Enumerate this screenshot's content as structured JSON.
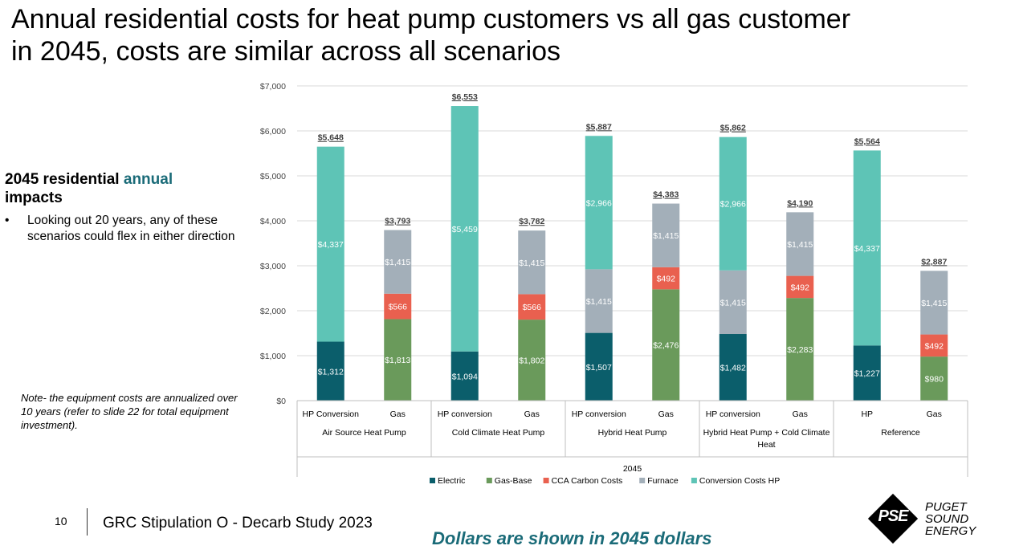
{
  "slide": {
    "title_line1": "Annual residential costs for heat pump customers vs all gas customer",
    "title_line2": "in 2045, costs are similar across all scenarios",
    "side_heading_prefix": "2045 residential ",
    "side_heading_accent": "annual",
    "side_heading_suffix": "impacts",
    "bullet_marker": "•",
    "bullet_text": "Looking out 20 years, any of these scenarios could flex in either direction",
    "note": "Note- the equipment costs are annualized over 10 years (refer to slide 22 for total equipment investment).",
    "page_number": "10",
    "footer_text": "GRC Stipulation O - Decarb Study 2023",
    "footer_dollars": "Dollars are shown in 2045 dollars",
    "logo_mark": "PSE",
    "logo_line1": "PUGET",
    "logo_line2": "SOUND",
    "logo_line3": "ENERGY",
    "accent_color": "#1a6b78"
  },
  "chart_data": {
    "type": "bar",
    "stacked": true,
    "title": "",
    "xlabel": "2045",
    "ylabel": "",
    "ylim": [
      0,
      7000
    ],
    "yticks": [
      0,
      1000,
      2000,
      3000,
      4000,
      5000,
      6000,
      7000
    ],
    "ytick_labels": [
      "$0",
      "$1,000",
      "$2,000",
      "$3,000",
      "$4,000",
      "$5,000",
      "$6,000",
      "$7,000"
    ],
    "grid": true,
    "legend_position": "bottom",
    "groups": [
      {
        "name": "Air Source Heat Pump",
        "categories": [
          "HP Conversion",
          "Gas"
        ]
      },
      {
        "name": "Cold Climate Heat Pump",
        "categories": [
          "HP conversion",
          "Gas"
        ]
      },
      {
        "name": "Hybrid Heat Pump",
        "categories": [
          "HP conversion",
          "Gas"
        ]
      },
      {
        "name": "Hybrid Heat Pump + Cold Climate Heat",
        "categories": [
          "HP conversion",
          "Gas"
        ]
      },
      {
        "name": "Reference",
        "categories": [
          "HP",
          "Gas"
        ]
      }
    ],
    "series": [
      {
        "name": "Electric",
        "color": "#0b5e6b",
        "values": [
          1312,
          0,
          1094,
          0,
          1507,
          0,
          1482,
          0,
          1227,
          0
        ],
        "labels": [
          "$1,312",
          "",
          "$1,094",
          "",
          "$1,507",
          "",
          "$1,482",
          "",
          "$1,227",
          ""
        ]
      },
      {
        "name": "Gas-Base",
        "color": "#6a9a5b",
        "values": [
          0,
          1813,
          0,
          1802,
          0,
          2476,
          0,
          2283,
          0,
          980
        ],
        "labels": [
          "",
          "$1,813",
          "",
          "$1,802",
          "",
          "$2,476",
          "",
          "$2,283",
          "",
          "$980"
        ]
      },
      {
        "name": "CCA Carbon Costs",
        "color": "#e9604f",
        "values": [
          0,
          566,
          0,
          566,
          0,
          492,
          0,
          492,
          0,
          492
        ],
        "labels": [
          "",
          "$566",
          "",
          "$566",
          "",
          "$492",
          "",
          "$492",
          "",
          "$492"
        ]
      },
      {
        "name": "Furnace",
        "color": "#a3afb9",
        "values": [
          0,
          1415,
          0,
          1415,
          1415,
          1415,
          1415,
          1415,
          0,
          1415
        ],
        "labels": [
          "",
          "$1,415",
          "",
          "$1,415",
          "$1,415",
          "$1,415",
          "$1,415",
          "$1,415",
          "",
          "$1,415"
        ]
      },
      {
        "name": "Conversion Costs HP",
        "color": "#5ec4b6",
        "values": [
          4337,
          0,
          5459,
          0,
          2966,
          0,
          2966,
          0,
          4337,
          0
        ],
        "labels": [
          "$4,337",
          "",
          "$5,459",
          "",
          "$2,966",
          "",
          "$2,966",
          "",
          "$4,337",
          ""
        ]
      }
    ],
    "totals": [
      5648,
      3793,
      6553,
      3782,
      5887,
      4383,
      5862,
      4190,
      5564,
      2887
    ],
    "total_labels": [
      "$5,648",
      "$3,793",
      "$6,553",
      "$3,782",
      "$5,887",
      "$4,383",
      "$5,862",
      "$4,190",
      "$5,564",
      "$2,887"
    ]
  }
}
